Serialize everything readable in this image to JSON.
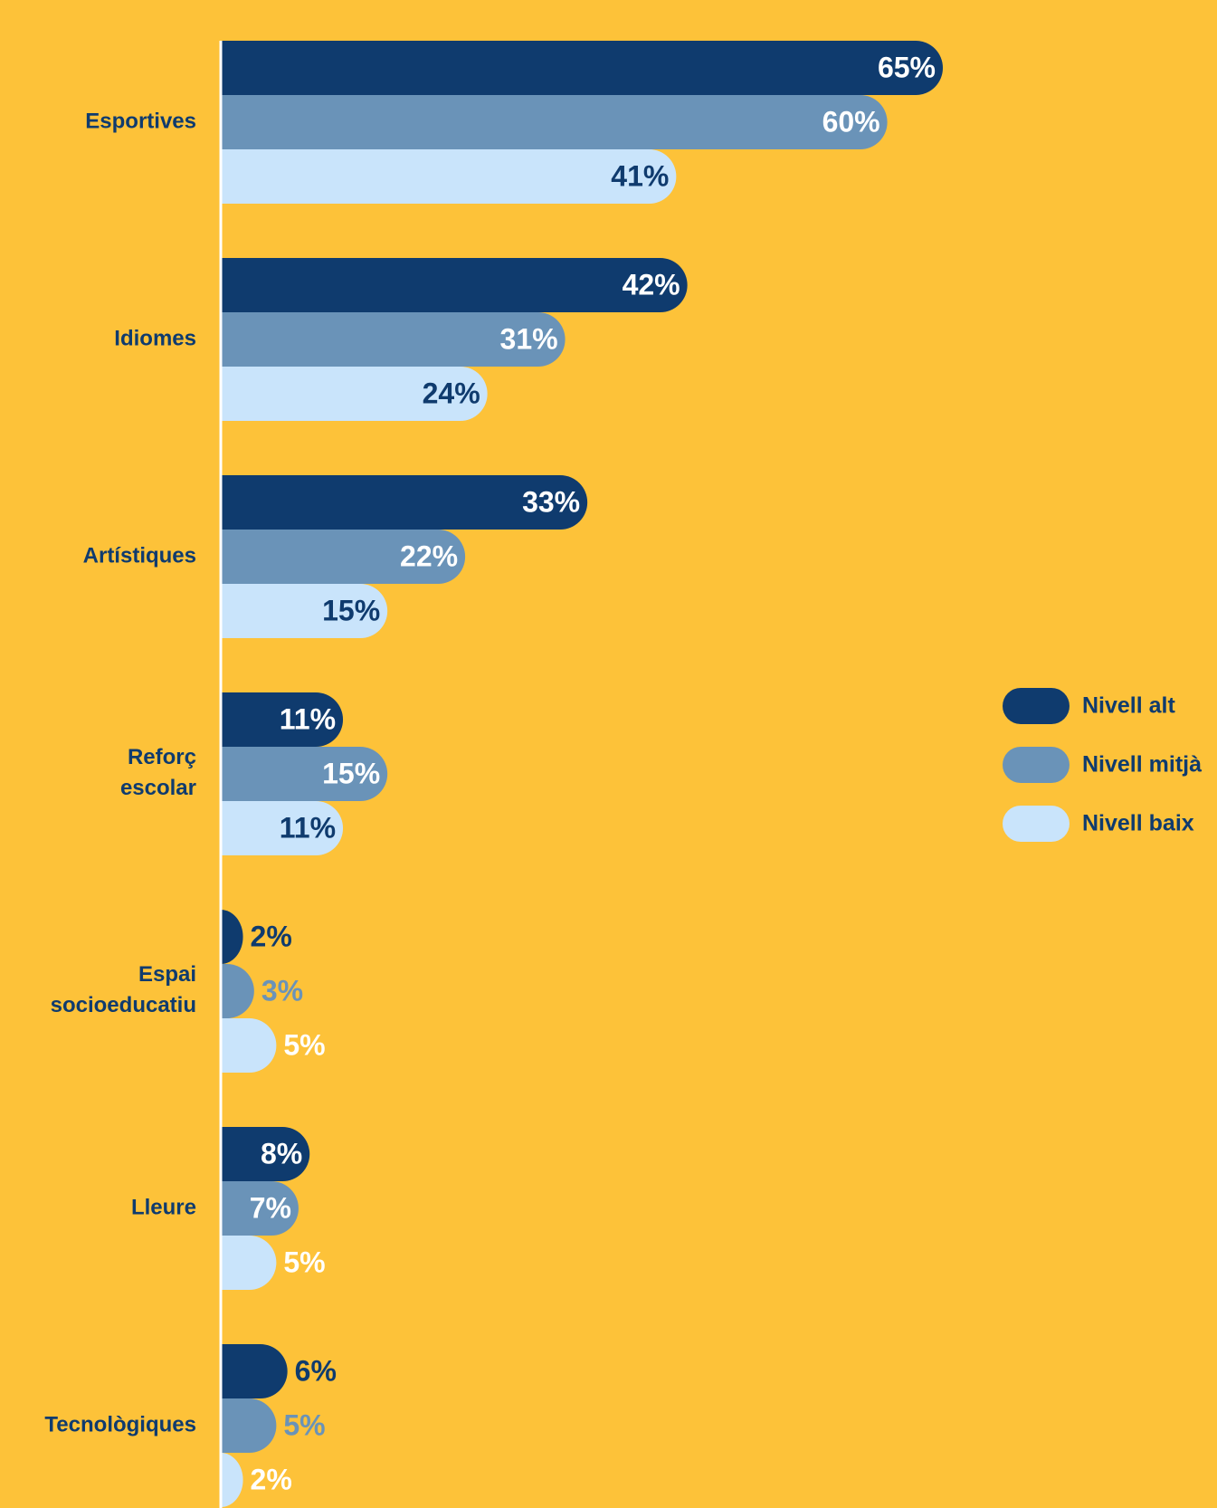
{
  "chart_data": {
    "type": "bar",
    "orientation": "horizontal",
    "categories": [
      "Esportives",
      "Idiomes",
      "Artístiques",
      "Reforç escolar",
      "Espai socioeducatiu",
      "Lleure",
      "Tecnològiques"
    ],
    "series": [
      {
        "name": "Nivell alt",
        "color": "#0f3b6e",
        "values": [
          65,
          42,
          33,
          11,
          2,
          8,
          6
        ],
        "value_labels": [
          "65%",
          "42%",
          "33%",
          "11%",
          "2%",
          "8%",
          "6%"
        ]
      },
      {
        "name": "Nivell mitjà",
        "color": "#6a93b8",
        "values": [
          60,
          31,
          22,
          15,
          3,
          7,
          5
        ],
        "value_labels": [
          "60%",
          "31%",
          "22%",
          "15%",
          "3%",
          "7%",
          "5%"
        ]
      },
      {
        "name": "Nivell baix",
        "color": "#c9e4fb",
        "values": [
          41,
          24,
          15,
          11,
          5,
          5,
          2
        ],
        "value_labels": [
          "41%",
          "24%",
          "15%",
          "11%",
          "5%",
          "5%",
          "2%"
        ]
      }
    ],
    "legend": "right"
  }
}
